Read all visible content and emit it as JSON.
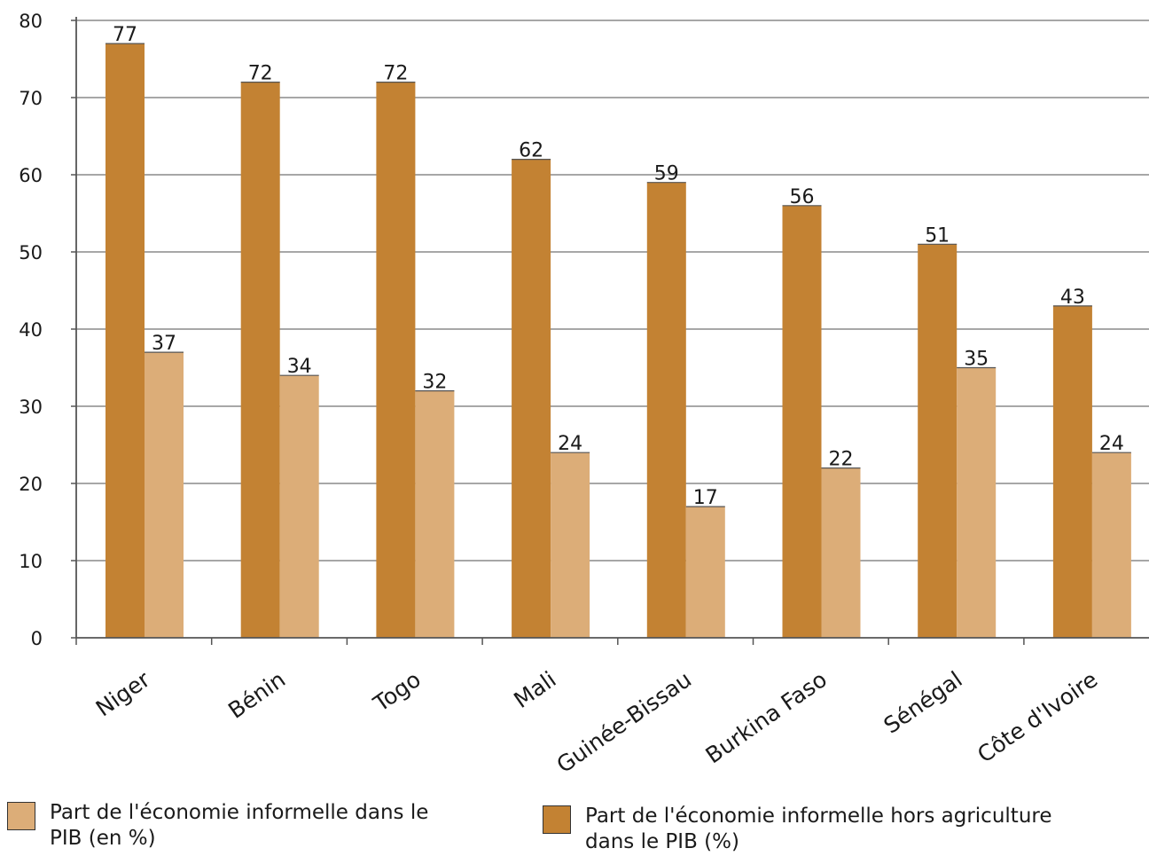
{
  "chart_data": {
    "type": "bar",
    "title": "",
    "xlabel": "",
    "ylabel": "",
    "ylim": [
      0,
      80
    ],
    "yticks": [
      0,
      10,
      20,
      30,
      40,
      50,
      60,
      70,
      80
    ],
    "grid": true,
    "legend_placement": "bottom",
    "categories": [
      "Niger",
      "Bénin",
      "Togo",
      "Mali",
      "Guinée-Bissau",
      "Burkina Faso",
      "Sénégal",
      "Côte d'Ivoire"
    ],
    "series": [
      {
        "name": "Part de l'économie informelle hors agriculture dans le PIB (%)",
        "color": "#c38233",
        "values": [
          77,
          72,
          72,
          62,
          59,
          56,
          51,
          43
        ]
      },
      {
        "name": "Part de l'économie informelle dans le PIB (en %)",
        "color": "#dcad78",
        "values": [
          37,
          34,
          32,
          24,
          17,
          22,
          35,
          24
        ]
      }
    ]
  },
  "legend": {
    "items": [
      {
        "label": "Part de l'économie informelle dans le PIB (en %)",
        "color": "#dcad78"
      },
      {
        "label": "Part de l'économie informelle hors agriculture dans le PIB (%)",
        "color": "#c38233"
      }
    ]
  }
}
